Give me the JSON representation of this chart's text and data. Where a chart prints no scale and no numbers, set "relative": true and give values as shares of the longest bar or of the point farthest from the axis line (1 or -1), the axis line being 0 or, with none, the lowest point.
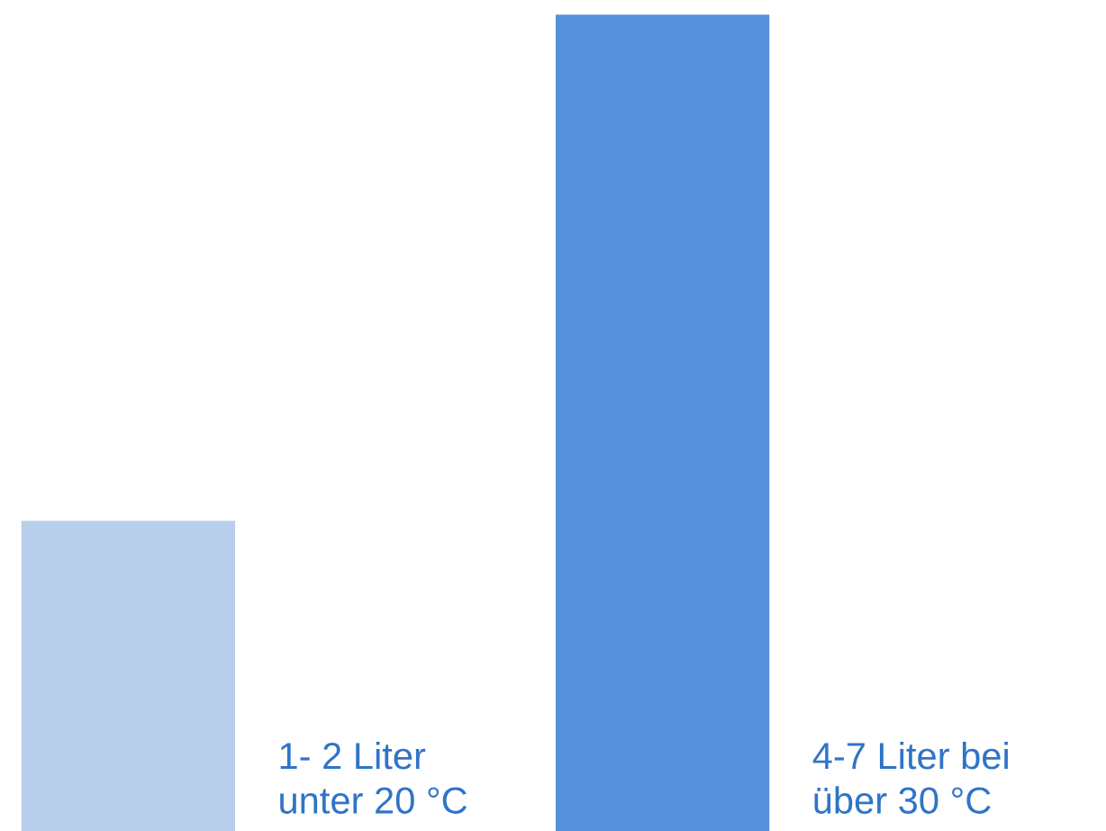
{
  "chart_data": {
    "type": "bar",
    "relative": true,
    "categories": [
      "1- 2 Liter\nunter 20 °C",
      "4-7 Liter bei\nüber 30 °C"
    ],
    "values": [
      0.38,
      1
    ],
    "colors": [
      "#b8cfec",
      "#5590da"
    ]
  }
}
